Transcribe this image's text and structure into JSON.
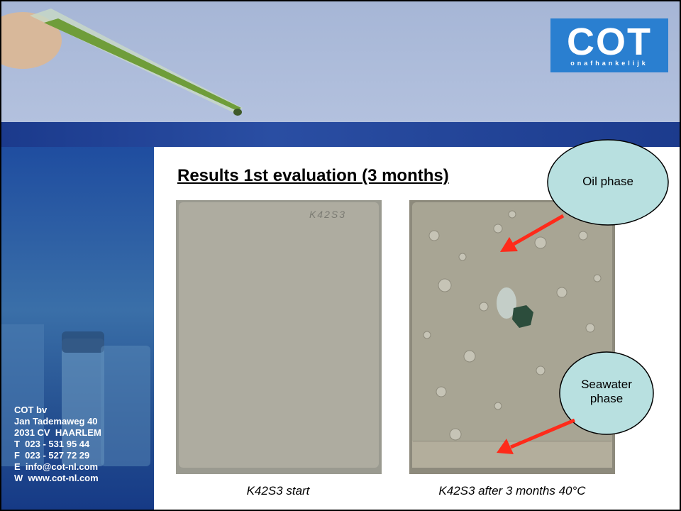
{
  "logo": {
    "name": "COT",
    "tagline": "onafhankelijk"
  },
  "title": "Results 1st evaluation (3 months)",
  "address": [
    "COT bv",
    "Jan Tademaweg 40",
    "2031 CV  HAARLEM",
    "T  023 - 531 95 44",
    "F  023 - 527 72 29",
    "E  info@cot-nl.com",
    "W  www.cot-nl.com"
  ],
  "photos": [
    {
      "panel_label": "K42S3",
      "caption": "K42S3 start"
    },
    {
      "caption": "K42S3 after 3 months 40°C"
    }
  ],
  "callouts": [
    "Oil phase",
    "Seawater phase"
  ]
}
